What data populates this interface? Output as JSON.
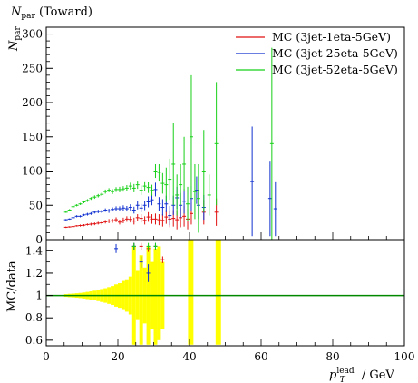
{
  "chart_data": [
    {
      "type": "scatter",
      "title": "N_par (Toward)",
      "ylabel": "N_par",
      "xlim": [
        0,
        100
      ],
      "ylim": [
        0,
        310
      ],
      "yticks": [
        0,
        50,
        100,
        150,
        200,
        250,
        300
      ],
      "legend_position": "top-right",
      "series": [
        {
          "name": "MC (3jet-1eta-5GeV)",
          "color": "#e01010",
          "points": [
            [
              5.5,
              18,
              1
            ],
            [
              6.5,
              18.5,
              1
            ],
            [
              7.5,
              19,
              1
            ],
            [
              8.5,
              20,
              1
            ],
            [
              9.5,
              20.5,
              1.5
            ],
            [
              10.5,
              21,
              1.5
            ],
            [
              11.5,
              22,
              1.5
            ],
            [
              12.5,
              22.5,
              2
            ],
            [
              13.5,
              23,
              2
            ],
            [
              14.5,
              24,
              2
            ],
            [
              15.5,
              24.5,
              2.5
            ],
            [
              16.5,
              26,
              2.5
            ],
            [
              17.5,
              27,
              3
            ],
            [
              18.5,
              27.5,
              3
            ],
            [
              19.5,
              29,
              3.5
            ],
            [
              20.5,
              25.5,
              3.5
            ],
            [
              21.5,
              28,
              4
            ],
            [
              22.5,
              30,
              4
            ],
            [
              23.5,
              29.5,
              4.5
            ],
            [
              24.5,
              27,
              5
            ],
            [
              25.5,
              32,
              5
            ],
            [
              26.5,
              31,
              6
            ],
            [
              27.5,
              28,
              6
            ],
            [
              28.5,
              33,
              7
            ],
            [
              29.5,
              30,
              7
            ],
            [
              30.5,
              30,
              8
            ],
            [
              31.5,
              29,
              8
            ],
            [
              32.5,
              28,
              9
            ],
            [
              33.5,
              33,
              10
            ],
            [
              34.5,
              30,
              12
            ],
            [
              35.5,
              31,
              12
            ],
            [
              36.5,
              29,
              14
            ],
            [
              37.5,
              32,
              14
            ],
            [
              38.5,
              34,
              15
            ],
            [
              39.5,
              30,
              15
            ],
            [
              40.5,
              38,
              16
            ],
            [
              44,
              40,
              18
            ],
            [
              47.5,
              40,
              20
            ]
          ]
        },
        {
          "name": "MC (3jet-25eta-5GeV)",
          "color": "#1030d0",
          "points": [
            [
              5.5,
              29,
              1
            ],
            [
              6.5,
              30,
              1
            ],
            [
              7.5,
              32,
              1
            ],
            [
              8.5,
              34,
              1.5
            ],
            [
              9.5,
              34,
              1.5
            ],
            [
              10.5,
              36,
              1.5
            ],
            [
              11.5,
              37,
              2
            ],
            [
              12.5,
              38,
              2
            ],
            [
              13.5,
              40,
              2
            ],
            [
              14.5,
              41,
              2.5
            ],
            [
              15.5,
              41,
              2.5
            ],
            [
              16.5,
              43,
              2.5
            ],
            [
              17.5,
              42,
              3
            ],
            [
              18.5,
              44,
              3
            ],
            [
              19.5,
              45,
              3.5
            ],
            [
              20.5,
              45,
              3.5
            ],
            [
              21.5,
              46,
              4
            ],
            [
              22.5,
              45,
              4
            ],
            [
              23.5,
              47,
              4.5
            ],
            [
              24.5,
              43,
              5
            ],
            [
              25.5,
              50,
              6
            ],
            [
              26.5,
              46,
              6
            ],
            [
              27.5,
              50,
              7
            ],
            [
              28.5,
              55,
              8
            ],
            [
              29.5,
              58,
              8
            ],
            [
              30.5,
              73,
              10
            ],
            [
              31.5,
              52,
              10
            ],
            [
              32.5,
              47,
              12
            ],
            [
              33.5,
              52,
              12
            ],
            [
              34.5,
              35,
              14
            ],
            [
              35.5,
              50,
              14
            ],
            [
              36.5,
              61,
              16
            ],
            [
              37.5,
              50,
              18
            ],
            [
              38.5,
              56,
              18
            ],
            [
              40.5,
              60,
              18
            ],
            [
              42,
              72,
              20
            ],
            [
              42.5,
              50,
              20
            ],
            [
              44,
              47,
              18
            ],
            [
              57.5,
              85,
              80
            ],
            [
              62.5,
              60,
              55
            ],
            [
              64,
              45,
              40
            ]
          ]
        },
        {
          "name": "MC (3jet-52eta-5GeV)",
          "color": "#18d018",
          "points": [
            [
              5.5,
              40,
              1
            ],
            [
              6.5,
              43,
              1.5
            ],
            [
              7.5,
              48,
              1.5
            ],
            [
              8.5,
              50,
              1.5
            ],
            [
              9.5,
              52,
              1.5
            ],
            [
              10.5,
              55,
              2
            ],
            [
              11.5,
              57,
              2
            ],
            [
              12.5,
              60,
              2
            ],
            [
              13.5,
              62,
              2.5
            ],
            [
              14.5,
              64,
              2.5
            ],
            [
              15.5,
              66,
              2.5
            ],
            [
              16.5,
              70,
              3
            ],
            [
              17.5,
              72,
              3
            ],
            [
              18.5,
              70,
              3.5
            ],
            [
              19.5,
              73,
              3.5
            ],
            [
              20.5,
              73,
              4
            ],
            [
              21.5,
              74,
              4
            ],
            [
              22.5,
              75,
              4.5
            ],
            [
              23.5,
              78,
              5
            ],
            [
              24.5,
              75,
              6
            ],
            [
              25.5,
              80,
              6
            ],
            [
              26.5,
              72,
              7
            ],
            [
              27.5,
              78,
              7
            ],
            [
              28.5,
              76,
              8
            ],
            [
              29.5,
              72,
              8
            ],
            [
              30.5,
              100,
              10
            ],
            [
              31.5,
              98,
              12
            ],
            [
              32.5,
              82,
              15
            ],
            [
              33.5,
              80,
              25
            ],
            [
              34.5,
              88,
              30
            ],
            [
              35.5,
              110,
              60
            ],
            [
              36.5,
              65,
              30
            ],
            [
              37.5,
              80,
              30
            ],
            [
              38.5,
              110,
              40
            ],
            [
              39.5,
              52,
              25
            ],
            [
              40.5,
              150,
              90
            ],
            [
              41.5,
              70,
              40
            ],
            [
              42.5,
              60,
              50
            ],
            [
              44,
              100,
              60
            ],
            [
              45.5,
              65,
              30
            ],
            [
              47.5,
              140,
              90
            ],
            [
              63,
              140,
              140
            ]
          ]
        }
      ]
    },
    {
      "type": "scatter",
      "ylabel": "MC/data",
      "xlabel": "p_T^lead / GeV",
      "xlim": [
        0,
        100
      ],
      "ylim": [
        0.55,
        1.5
      ],
      "xticks": [
        0,
        20,
        40,
        60,
        80,
        100
      ],
      "yticks": [
        0.6,
        0.8,
        1,
        1.2,
        1.4
      ],
      "reference_line": 1,
      "reference_color": "#008800",
      "band_color": "#ffff00",
      "band": [
        [
          5,
          0.988,
          1.012
        ],
        [
          6,
          0.985,
          1.015
        ],
        [
          7,
          0.983,
          1.017
        ],
        [
          8,
          0.98,
          1.02
        ],
        [
          9,
          0.977,
          1.023
        ],
        [
          10,
          0.973,
          1.027
        ],
        [
          11,
          0.968,
          1.032
        ],
        [
          12,
          0.963,
          1.037
        ],
        [
          13,
          0.957,
          1.043
        ],
        [
          14,
          0.95,
          1.05
        ],
        [
          15,
          0.942,
          1.058
        ],
        [
          16,
          0.935,
          1.065
        ],
        [
          17,
          0.925,
          1.075
        ],
        [
          18,
          0.915,
          1.085
        ],
        [
          19,
          0.9,
          1.1
        ],
        [
          20,
          0.89,
          1.11
        ],
        [
          21,
          0.87,
          1.13
        ],
        [
          22,
          0.855,
          1.145
        ],
        [
          23,
          0.83,
          1.17
        ],
        [
          24,
          0.56,
          1.44
        ],
        [
          25,
          0.78,
          1.22
        ],
        [
          26,
          0.56,
          1.36
        ],
        [
          27,
          0.75,
          1.25
        ],
        [
          28,
          0.56,
          1.44
        ],
        [
          29,
          0.7,
          1.3
        ],
        [
          30,
          0.56,
          1.42
        ],
        [
          31,
          0.6,
          1.44
        ],
        [
          32,
          0.7,
          1.3
        ],
        [
          39.6,
          0.56,
          1.5
        ],
        [
          47.3,
          0.56,
          1.5
        ]
      ],
      "series": [
        {
          "name": "MC (3jet-1eta-5GeV)",
          "color": "#e01010",
          "points": [
            [
              24.5,
              1.44,
              0.03
            ],
            [
              26.5,
              1.44,
              0.03
            ],
            [
              28.5,
              1.42,
              0.03
            ],
            [
              30.5,
              1.44,
              0.03
            ],
            [
              32.5,
              1.32,
              0.03
            ]
          ]
        },
        {
          "name": "MC (3jet-25eta-5GeV)",
          "color": "#1030d0",
          "points": [
            [
              19.5,
              1.42,
              0.04
            ],
            [
              24.5,
              1.44,
              0.03
            ],
            [
              26.5,
              1.3,
              0.05
            ],
            [
              28.5,
              1.2,
              0.08
            ],
            [
              30.5,
              1.44,
              0.03
            ]
          ]
        },
        {
          "name": "MC (3jet-52eta-5GeV)",
          "color": "#18d018",
          "points": [
            [
              24.5,
              1.44,
              0.03
            ],
            [
              28.5,
              1.44,
              0.03
            ],
            [
              30.5,
              1.44,
              0.03
            ]
          ]
        }
      ]
    }
  ]
}
